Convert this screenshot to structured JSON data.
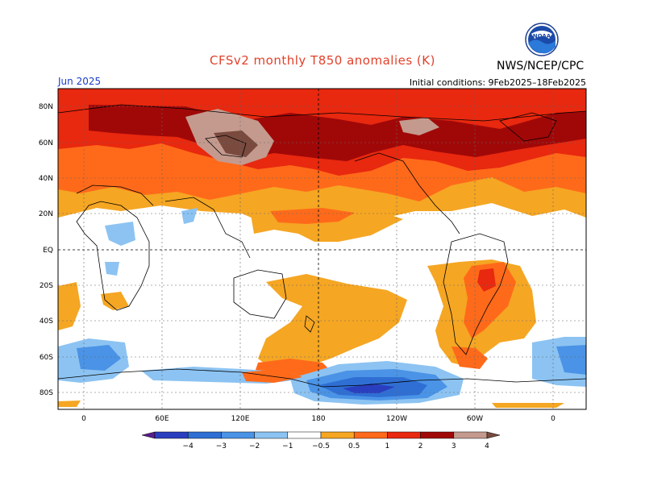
{
  "title": "CFSv2 monthly T850 anomalies (K)",
  "org": "NWS/NCEP/CPC",
  "logo_text": "NOAA",
  "month": "Jun 2025",
  "initial_conditions": "Initial conditions: 9Feb2025–18Feb2025",
  "lat_labels": [
    "80N",
    "60N",
    "40N",
    "20N",
    "EQ",
    "20S",
    "40S",
    "60S",
    "80S"
  ],
  "lon_labels": [
    "0",
    "60E",
    "120E",
    "180",
    "120W",
    "60W",
    "0"
  ],
  "colorbar": {
    "ticks": [
      "−4",
      "−3",
      "−2",
      "−1",
      "−0.5",
      "0.5",
      "1",
      "2",
      "3",
      "4"
    ],
    "colors": [
      "#5a1e8c",
      "#2a3fbf",
      "#2f6fd4",
      "#4a93e6",
      "#8cc3f2",
      "#ffffff",
      "#f5a623",
      "#ff6a1a",
      "#e8280f",
      "#a00808",
      "#c49a8e",
      "#7a4a3e"
    ]
  },
  "colors": {
    "title": "#e2412b",
    "month": "#1a3cc8"
  }
}
